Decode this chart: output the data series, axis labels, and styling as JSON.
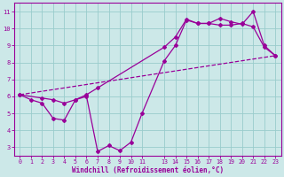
{
  "xlabel": "Windchill (Refroidissement éolien,°C)",
  "bg_color": "#cce8e8",
  "line_color": "#990099",
  "grid_color": "#99cccc",
  "line1_x": [
    0,
    1,
    2,
    3,
    4,
    5,
    6,
    7,
    8,
    9,
    10,
    11,
    13,
    14,
    15,
    16,
    17,
    18,
    19,
    20,
    21,
    22,
    23
  ],
  "line1_y": [
    6.1,
    5.8,
    5.6,
    4.7,
    4.6,
    5.8,
    6.0,
    2.75,
    3.1,
    2.8,
    3.3,
    5.0,
    8.1,
    9.0,
    10.5,
    10.3,
    10.3,
    10.2,
    10.2,
    10.3,
    10.1,
    8.9,
    8.4
  ],
  "line2_x": [
    0,
    2,
    3,
    4,
    5,
    6,
    7,
    13,
    14,
    15,
    16,
    17,
    18,
    19,
    20,
    21,
    22,
    23
  ],
  "line2_y": [
    6.1,
    5.9,
    5.8,
    5.6,
    5.8,
    6.1,
    6.5,
    8.9,
    9.5,
    10.55,
    10.3,
    10.3,
    10.6,
    10.4,
    10.25,
    11.0,
    9.0,
    8.4
  ],
  "trend_x": [
    0,
    23
  ],
  "trend_y": [
    6.1,
    8.4
  ],
  "xlim": [
    -0.5,
    23.5
  ],
  "ylim": [
    2.5,
    11.5
  ],
  "xticks": [
    0,
    1,
    2,
    3,
    4,
    5,
    6,
    7,
    8,
    9,
    10,
    11,
    13,
    14,
    15,
    16,
    17,
    18,
    19,
    20,
    21,
    22,
    23
  ],
  "yticks": [
    3,
    4,
    5,
    6,
    7,
    8,
    9,
    10,
    11
  ]
}
